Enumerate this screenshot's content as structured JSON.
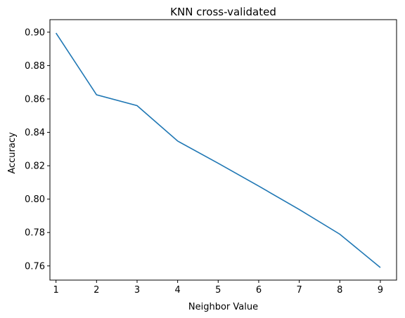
{
  "chart_data": {
    "type": "line",
    "title": "KNN cross-validated",
    "xlabel": "Neighbor Value",
    "ylabel": "Accuracy",
    "x": [
      1,
      2,
      3,
      4,
      5,
      6,
      7,
      8,
      9
    ],
    "series": [
      {
        "values": [
          0.8995,
          0.8625,
          0.856,
          0.8348,
          0.8215,
          0.8078,
          0.7938,
          0.779,
          0.759
        ],
        "color": "#1f77b4"
      }
    ],
    "xlim": [
      0.85,
      9.4
    ],
    "ylim": [
      0.7515,
      0.9075
    ],
    "xticks": [
      "1",
      "2",
      "3",
      "4",
      "5",
      "6",
      "7",
      "8",
      "9"
    ],
    "yticks": [
      "0.76",
      "0.78",
      "0.80",
      "0.82",
      "0.84",
      "0.86",
      "0.88",
      "0.90"
    ],
    "grid": false,
    "legend": "none"
  }
}
